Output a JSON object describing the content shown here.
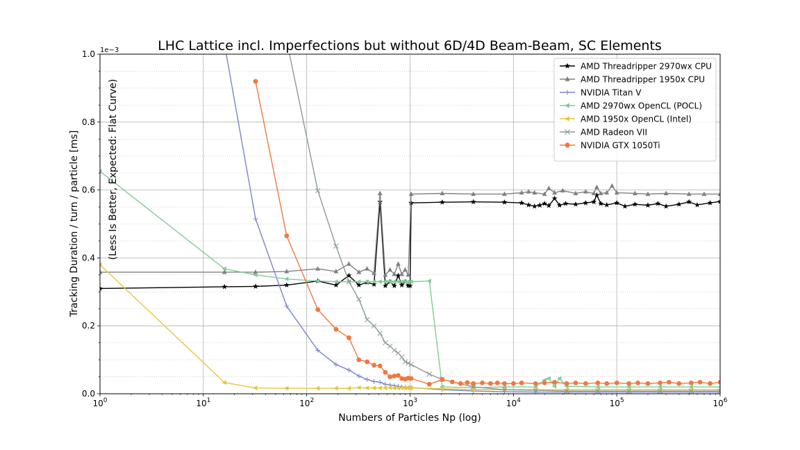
{
  "chart_data": {
    "type": "line",
    "title": "LHC Lattice incl. Imperfections but without 6D/4D Beam-Beam, SC Elements",
    "xlabel": "Numbers of Particles Np (log)",
    "ylabel": "Tracking Duration / turn / particle [ms]",
    "annotation": "(Less Is Better, Expected: Flat Curve)",
    "y_offset_text": "1e−3",
    "xscale": "log",
    "xlim": [
      1,
      1000000
    ],
    "ylim": [
      0,
      1.0
    ],
    "x_tick_values": [
      1,
      10,
      100,
      1000,
      10000,
      100000,
      1000000
    ],
    "x_tick_bases": [
      "10",
      "10",
      "10",
      "10",
      "10",
      "10",
      "10"
    ],
    "x_tick_exponents": [
      "0",
      "1",
      "2",
      "3",
      "4",
      "5",
      "6"
    ],
    "y_tick_values": [
      0,
      0.2,
      0.4,
      0.6,
      0.8,
      1.0
    ],
    "y_tick_labels": [
      "0.0",
      "0.2",
      "0.4",
      "0.6",
      "0.8",
      "1.0"
    ],
    "grid": true,
    "legend_position": "top-right",
    "series": [
      {
        "name": "AMD Threadripper 2970wx CPU",
        "color": "#000000",
        "marker": "star",
        "points": [
          [
            1,
            0.31
          ],
          [
            16,
            0.315
          ],
          [
            32,
            0.316
          ],
          [
            64,
            0.32
          ],
          [
            128,
            0.332
          ],
          [
            192,
            0.32
          ],
          [
            256,
            0.348
          ],
          [
            320,
            0.32
          ],
          [
            384,
            0.328
          ],
          [
            448,
            0.322
          ],
          [
            512,
            0.565
          ],
          [
            576,
            0.318
          ],
          [
            640,
            0.33
          ],
          [
            704,
            0.318
          ],
          [
            768,
            0.348
          ],
          [
            832,
            0.32
          ],
          [
            896,
            0.33
          ],
          [
            960,
            0.318
          ],
          [
            1000,
            0.318
          ],
          [
            1024,
            0.562
          ],
          [
            2048,
            0.564
          ],
          [
            4096,
            0.565
          ],
          [
            8192,
            0.564
          ],
          [
            12000,
            0.562
          ],
          [
            14000,
            0.556
          ],
          [
            16000,
            0.552
          ],
          [
            18000,
            0.555
          ],
          [
            20000,
            0.56
          ],
          [
            22000,
            0.554
          ],
          [
            25000,
            0.575
          ],
          [
            28000,
            0.555
          ],
          [
            32000,
            0.56
          ],
          [
            40000,
            0.558
          ],
          [
            50000,
            0.562
          ],
          [
            60000,
            0.565
          ],
          [
            64000,
            0.585
          ],
          [
            70000,
            0.56
          ],
          [
            80000,
            0.556
          ],
          [
            100000,
            0.562
          ],
          [
            120000,
            0.552
          ],
          [
            150000,
            0.558
          ],
          [
            200000,
            0.555
          ],
          [
            250000,
            0.56
          ],
          [
            300000,
            0.552
          ],
          [
            400000,
            0.558
          ],
          [
            500000,
            0.565
          ],
          [
            600000,
            0.556
          ],
          [
            800000,
            0.562
          ],
          [
            1000000,
            0.566
          ]
        ]
      },
      {
        "name": "AMD Threadripper 1950x CPU",
        "color": "#808080",
        "marker": "triangle-up",
        "points": [
          [
            1,
            0.358
          ],
          [
            16,
            0.358
          ],
          [
            32,
            0.358
          ],
          [
            64,
            0.36
          ],
          [
            128,
            0.368
          ],
          [
            192,
            0.36
          ],
          [
            256,
            0.382
          ],
          [
            320,
            0.358
          ],
          [
            384,
            0.368
          ],
          [
            448,
            0.355
          ],
          [
            512,
            0.59
          ],
          [
            576,
            0.35
          ],
          [
            640,
            0.365
          ],
          [
            704,
            0.352
          ],
          [
            768,
            0.382
          ],
          [
            832,
            0.352
          ],
          [
            896,
            0.365
          ],
          [
            960,
            0.35
          ],
          [
            1024,
            0.588
          ],
          [
            2048,
            0.59
          ],
          [
            4096,
            0.588
          ],
          [
            8192,
            0.588
          ],
          [
            12000,
            0.592
          ],
          [
            14000,
            0.595
          ],
          [
            16000,
            0.592
          ],
          [
            20000,
            0.588
          ],
          [
            22000,
            0.605
          ],
          [
            25000,
            0.592
          ],
          [
            30000,
            0.598
          ],
          [
            40000,
            0.59
          ],
          [
            50000,
            0.595
          ],
          [
            60000,
            0.59
          ],
          [
            64000,
            0.608
          ],
          [
            70000,
            0.59
          ],
          [
            80000,
            0.592
          ],
          [
            90000,
            0.612
          ],
          [
            100000,
            0.592
          ],
          [
            150000,
            0.59
          ],
          [
            200000,
            0.588
          ],
          [
            300000,
            0.59
          ],
          [
            500000,
            0.588
          ],
          [
            700000,
            0.588
          ],
          [
            1000000,
            0.588
          ]
        ]
      },
      {
        "name": "NVIDIA Titan V",
        "color": "#7b83c8",
        "marker": "plus",
        "points": [
          [
            16,
            1.03
          ],
          [
            32,
            0.515
          ],
          [
            64,
            0.258
          ],
          [
            128,
            0.128
          ],
          [
            192,
            0.086
          ],
          [
            256,
            0.07
          ],
          [
            320,
            0.052
          ],
          [
            384,
            0.042
          ],
          [
            448,
            0.036
          ],
          [
            512,
            0.034
          ],
          [
            576,
            0.028
          ],
          [
            640,
            0.026
          ],
          [
            704,
            0.024
          ],
          [
            768,
            0.022
          ],
          [
            832,
            0.02
          ],
          [
            896,
            0.019
          ],
          [
            960,
            0.018
          ],
          [
            1024,
            0.018
          ],
          [
            2048,
            0.012
          ],
          [
            4096,
            0.008
          ],
          [
            8192,
            0.006
          ],
          [
            16384,
            0.005
          ],
          [
            32768,
            0.005
          ],
          [
            65536,
            0.005
          ],
          [
            131072,
            0.005
          ],
          [
            262144,
            0.005
          ],
          [
            524288,
            0.005
          ],
          [
            1000000,
            0.005
          ]
        ]
      },
      {
        "name": "AMD 2970wx OpenCL (POCL)",
        "color": "#7fcc9a",
        "marker": "triangle-left",
        "points": [
          [
            1,
            0.655
          ],
          [
            16,
            0.368
          ],
          [
            32,
            0.35
          ],
          [
            64,
            0.338
          ],
          [
            128,
            0.332
          ],
          [
            192,
            0.33
          ],
          [
            256,
            0.33
          ],
          [
            320,
            0.33
          ],
          [
            384,
            0.33
          ],
          [
            448,
            0.33
          ],
          [
            512,
            0.33
          ],
          [
            576,
            0.33
          ],
          [
            640,
            0.33
          ],
          [
            704,
            0.33
          ],
          [
            768,
            0.33
          ],
          [
            832,
            0.33
          ],
          [
            896,
            0.33
          ],
          [
            960,
            0.33
          ],
          [
            1024,
            0.33
          ],
          [
            1536,
            0.332
          ],
          [
            2048,
            0.02
          ],
          [
            4096,
            0.018
          ],
          [
            8192,
            0.02
          ],
          [
            16384,
            0.02
          ],
          [
            20000,
            0.04
          ],
          [
            22000,
            0.045
          ],
          [
            25000,
            0.022
          ],
          [
            28000,
            0.045
          ],
          [
            32768,
            0.022
          ],
          [
            65536,
            0.02
          ],
          [
            131072,
            0.02
          ],
          [
            262144,
            0.02
          ],
          [
            524288,
            0.02
          ],
          [
            1000000,
            0.02
          ]
        ]
      },
      {
        "name": "AMD 1950x OpenCL (Intel)",
        "color": "#e6c73a",
        "marker": "triangle-left",
        "points": [
          [
            1,
            0.38
          ],
          [
            16,
            0.033
          ],
          [
            32,
            0.017
          ],
          [
            64,
            0.016
          ],
          [
            128,
            0.016
          ],
          [
            192,
            0.016
          ],
          [
            256,
            0.016
          ],
          [
            320,
            0.018
          ],
          [
            384,
            0.017
          ],
          [
            448,
            0.017
          ],
          [
            512,
            0.017
          ],
          [
            576,
            0.017
          ],
          [
            640,
            0.018
          ],
          [
            704,
            0.017
          ],
          [
            768,
            0.017
          ],
          [
            832,
            0.017
          ],
          [
            896,
            0.017
          ],
          [
            960,
            0.017
          ],
          [
            1024,
            0.017
          ],
          [
            2048,
            0.015
          ],
          [
            4096,
            0.012
          ],
          [
            8192,
            0.012
          ],
          [
            16384,
            0.012
          ],
          [
            32768,
            0.012
          ],
          [
            65536,
            0.012
          ],
          [
            131072,
            0.012
          ],
          [
            262144,
            0.012
          ],
          [
            524288,
            0.012
          ],
          [
            1000000,
            0.012
          ]
        ]
      },
      {
        "name": "AMD Radeon VII",
        "color": "#8a9a96",
        "marker": "x",
        "points": [
          [
            64,
            1.04
          ],
          [
            128,
            0.598
          ],
          [
            192,
            0.435
          ],
          [
            256,
            0.33
          ],
          [
            320,
            0.278
          ],
          [
            384,
            0.218
          ],
          [
            448,
            0.2
          ],
          [
            512,
            0.178
          ],
          [
            576,
            0.15
          ],
          [
            640,
            0.14
          ],
          [
            704,
            0.128
          ],
          [
            768,
            0.12
          ],
          [
            832,
            0.108
          ],
          [
            896,
            0.094
          ],
          [
            960,
            0.09
          ],
          [
            1024,
            0.086
          ],
          [
            1536,
            0.058
          ],
          [
            2048,
            0.042
          ],
          [
            4096,
            0.02
          ],
          [
            8192,
            0.012
          ],
          [
            16384,
            0.01
          ],
          [
            32768,
            0.008
          ],
          [
            65536,
            0.008
          ],
          [
            131072,
            0.008
          ],
          [
            262144,
            0.008
          ],
          [
            524288,
            0.008
          ],
          [
            1000000,
            0.008
          ]
        ]
      },
      {
        "name": "NVIDIA GTX 1050Ti",
        "color": "#f07840",
        "marker": "circle",
        "points": [
          [
            32,
            0.92
          ],
          [
            64,
            0.465
          ],
          [
            128,
            0.248
          ],
          [
            192,
            0.19
          ],
          [
            256,
            0.165
          ],
          [
            320,
            0.1
          ],
          [
            384,
            0.094
          ],
          [
            448,
            0.084
          ],
          [
            512,
            0.082
          ],
          [
            576,
            0.063
          ],
          [
            640,
            0.05
          ],
          [
            704,
            0.052
          ],
          [
            768,
            0.054
          ],
          [
            832,
            0.045
          ],
          [
            896,
            0.043
          ],
          [
            960,
            0.046
          ],
          [
            1024,
            0.045
          ],
          [
            1536,
            0.028
          ],
          [
            2048,
            0.042
          ],
          [
            2560,
            0.035
          ],
          [
            3072,
            0.03
          ],
          [
            3584,
            0.033
          ],
          [
            4096,
            0.03
          ],
          [
            5000,
            0.032
          ],
          [
            6000,
            0.03
          ],
          [
            7000,
            0.032
          ],
          [
            8192,
            0.03
          ],
          [
            10000,
            0.03
          ],
          [
            12000,
            0.032
          ],
          [
            16384,
            0.03
          ],
          [
            20000,
            0.032
          ],
          [
            25000,
            0.034
          ],
          [
            32768,
            0.03
          ],
          [
            40000,
            0.032
          ],
          [
            50000,
            0.03
          ],
          [
            65536,
            0.032
          ],
          [
            80000,
            0.03
          ],
          [
            100000,
            0.032
          ],
          [
            131072,
            0.03
          ],
          [
            160000,
            0.032
          ],
          [
            200000,
            0.03
          ],
          [
            262144,
            0.032
          ],
          [
            320000,
            0.034
          ],
          [
            400000,
            0.03
          ],
          [
            524288,
            0.032
          ],
          [
            640000,
            0.034
          ],
          [
            800000,
            0.03
          ],
          [
            1000000,
            0.034
          ]
        ]
      }
    ]
  }
}
